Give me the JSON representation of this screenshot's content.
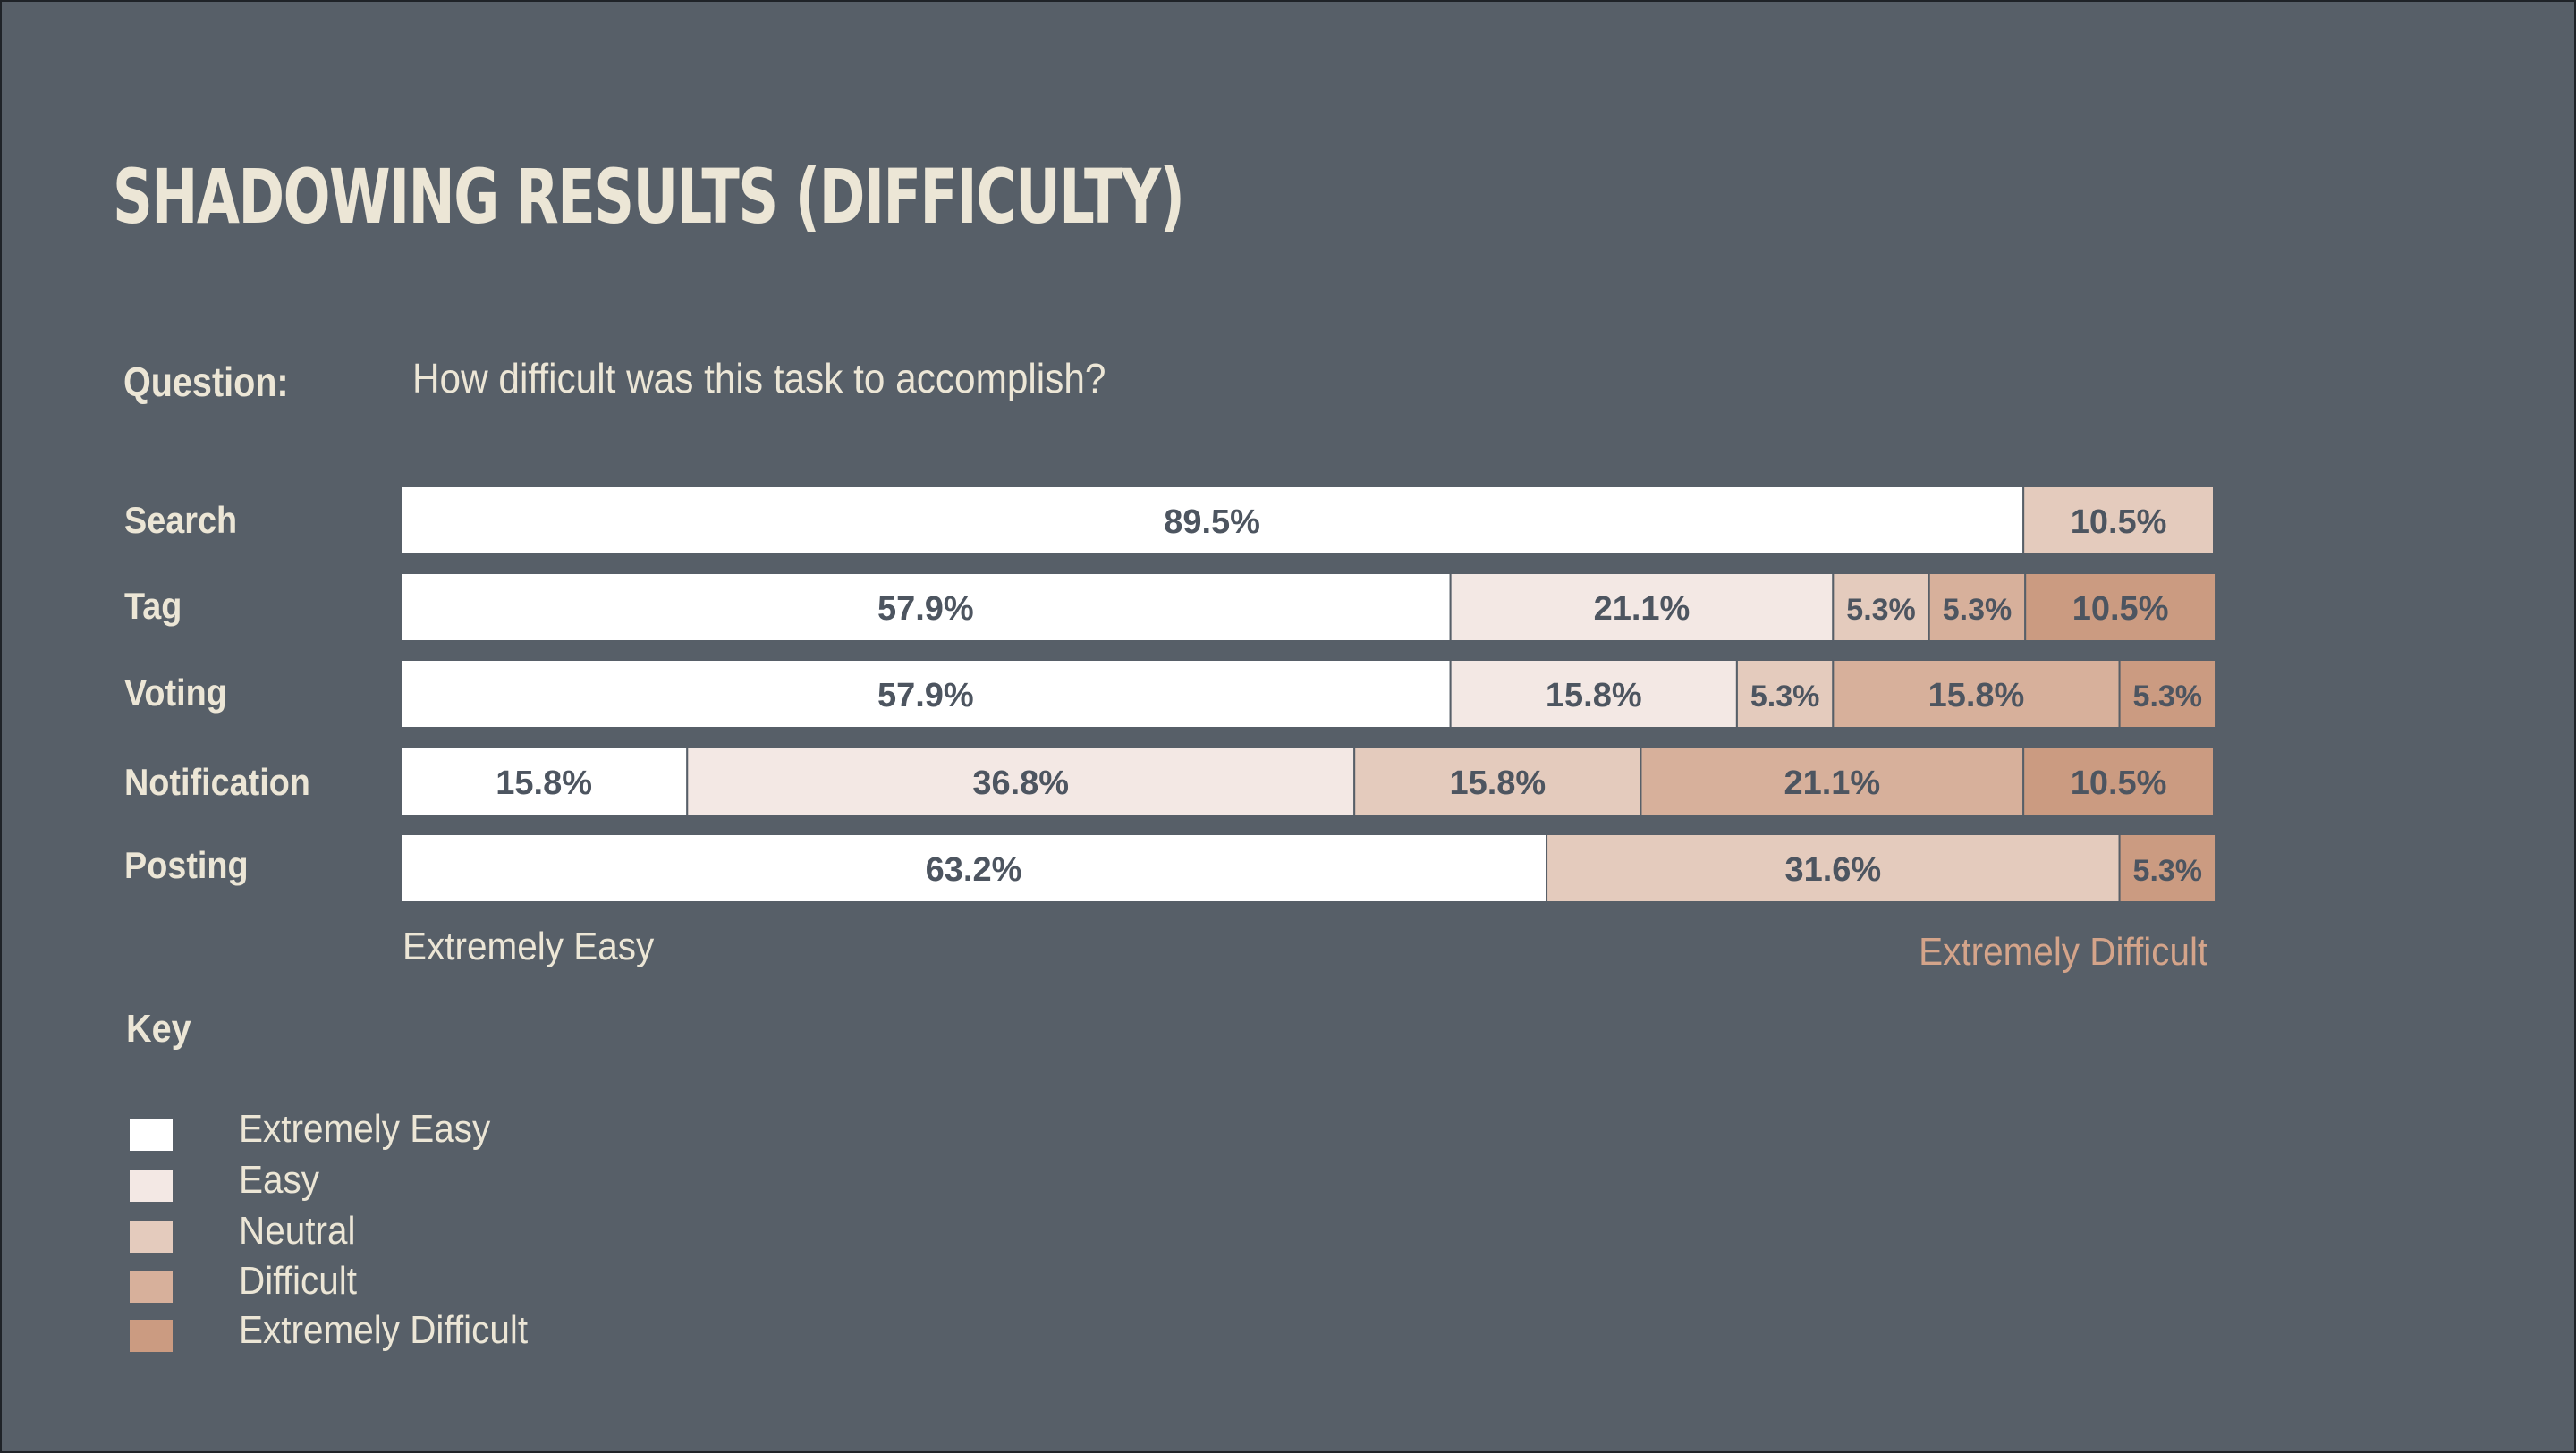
{
  "title": "SHADOWING RESULTS (DIFFICULTY)",
  "question": {
    "label": "Question:",
    "text": "How difficult was this task to accomplish?"
  },
  "scale_labels": {
    "left": "Extremely Easy",
    "right": "Extremely Difficult"
  },
  "key": {
    "title": "Key",
    "items": [
      {
        "label": "Extremely Easy",
        "color": "#ffffff"
      },
      {
        "label": "Easy",
        "color": "#f3e8e4"
      },
      {
        "label": "Neutral",
        "color": "#e4cbbd"
      },
      {
        "label": "Difficult",
        "color": "#d7b09b"
      },
      {
        "label": "Extremely Difficult",
        "color": "#cb9b81"
      }
    ]
  },
  "chart_data": {
    "type": "bar",
    "orientation": "horizontal",
    "stacked": true,
    "categories": [
      "Search",
      "Tag",
      "Voting",
      "Notification",
      "Posting"
    ],
    "series": [
      {
        "name": "Extremely Easy",
        "values": [
          89.5,
          57.9,
          57.9,
          15.8,
          63.2
        ]
      },
      {
        "name": "Easy",
        "values": [
          0,
          21.1,
          15.8,
          36.8,
          0
        ]
      },
      {
        "name": "Neutral",
        "values": [
          10.5,
          5.3,
          5.3,
          15.8,
          31.6
        ]
      },
      {
        "name": "Difficult",
        "values": [
          0,
          5.3,
          15.8,
          21.1,
          0
        ]
      },
      {
        "name": "Extremely Difficult",
        "values": [
          0,
          10.5,
          5.3,
          10.5,
          5.3
        ]
      }
    ],
    "value_format": "%",
    "xlim": [
      0,
      100
    ],
    "legend": "bottom-left"
  }
}
